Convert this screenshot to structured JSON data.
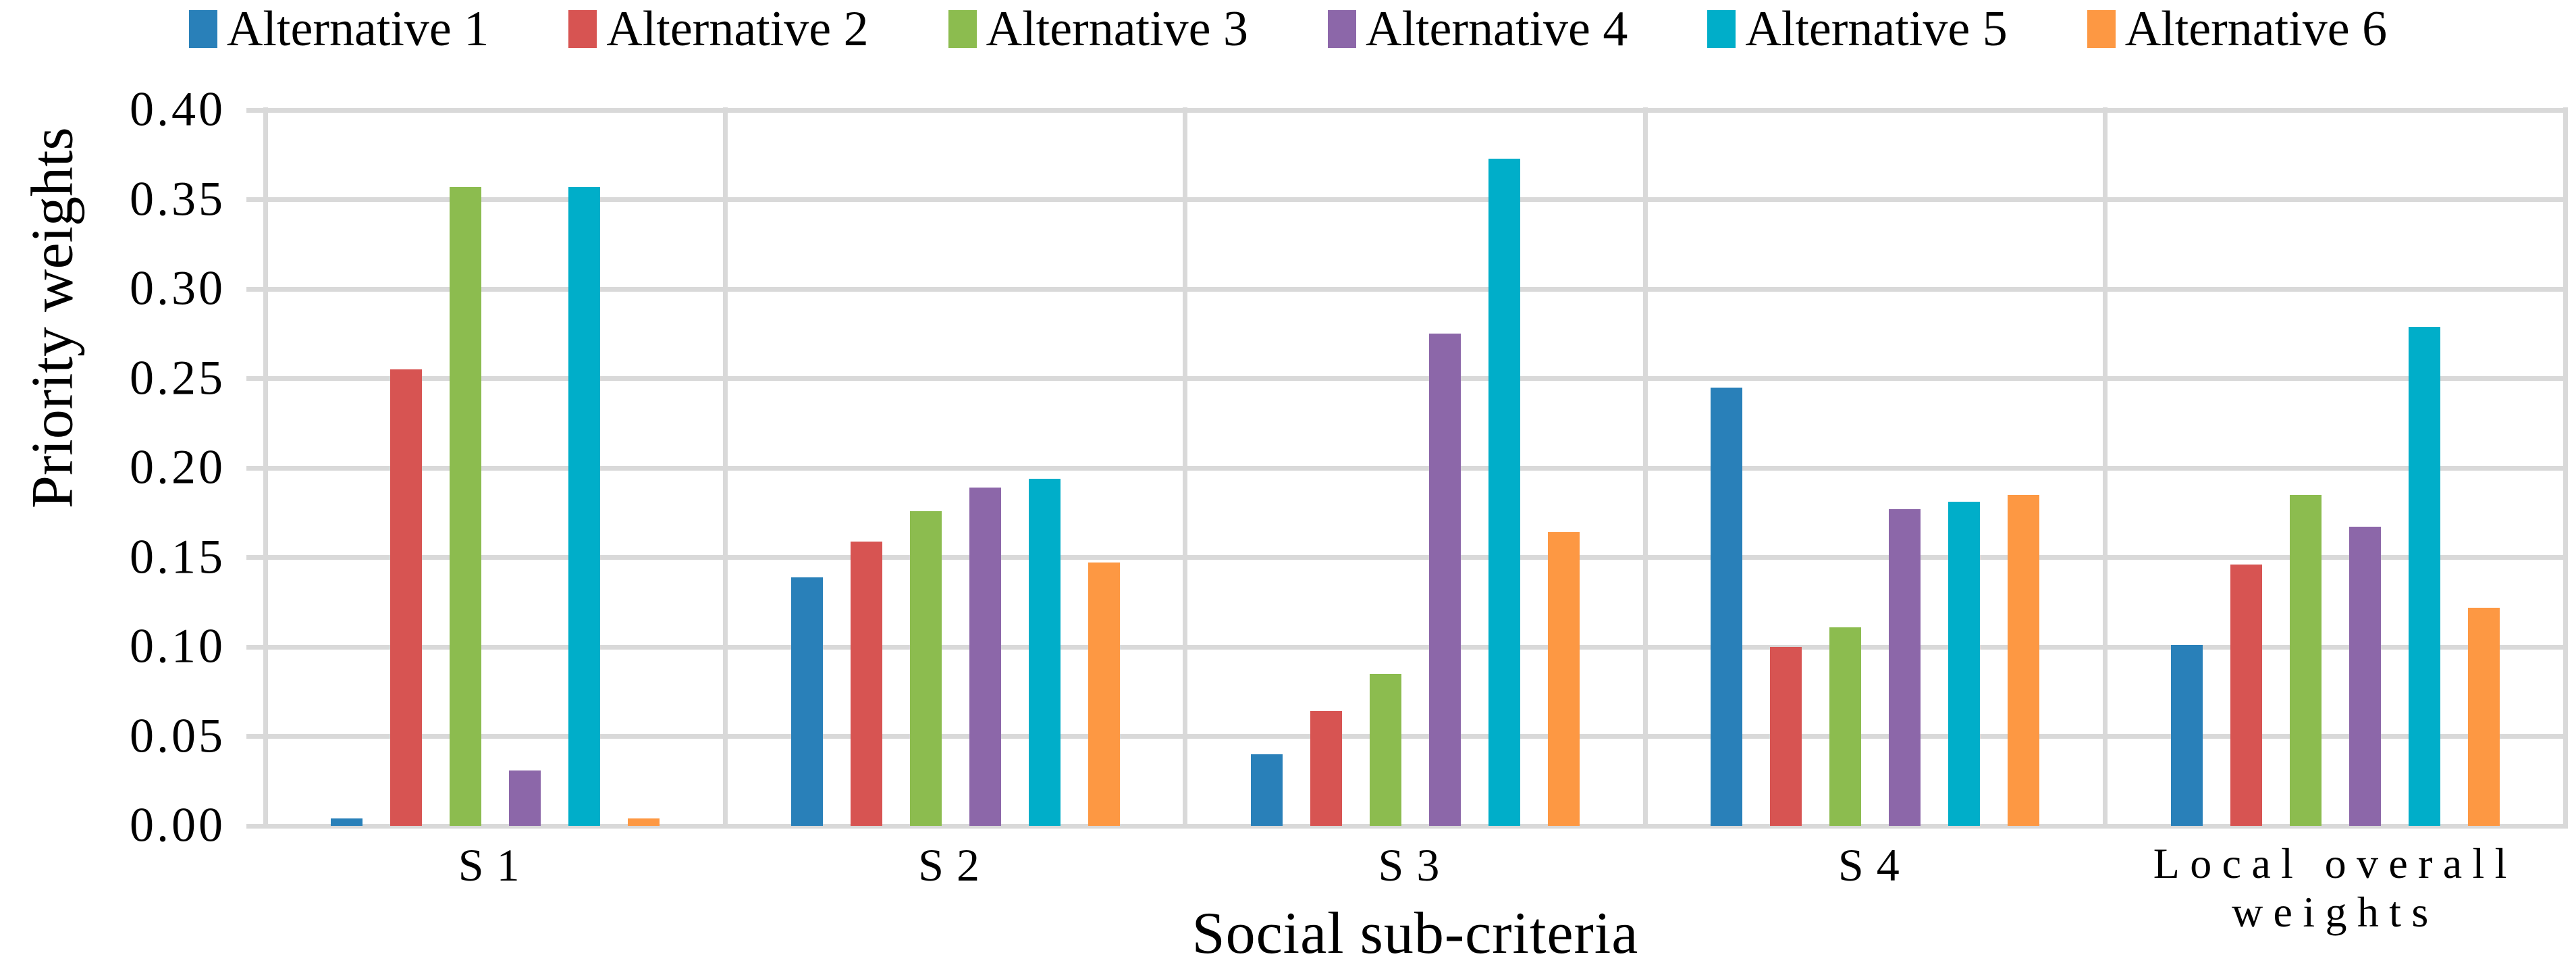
{
  "legend": [
    {
      "label": "Alternative 1",
      "color": "#2980b9"
    },
    {
      "label": "Alternative 2",
      "color": "#d75452"
    },
    {
      "label": "Alternative 3",
      "color": "#8cbc4f"
    },
    {
      "label": "Alternative 4",
      "color": "#8c67a9"
    },
    {
      "label": "Alternative 5",
      "color": "#00aec9"
    },
    {
      "label": "Alternative 6",
      "color": "#fd9843"
    }
  ],
  "y_axis": {
    "title": "Priority weights",
    "tick_labels": [
      "0.40",
      "0.35",
      "0.30",
      "0.25",
      "0.20",
      "0.15",
      "0.10",
      "0.05",
      "0.00"
    ],
    "grid_color": "#d9d9d9"
  },
  "x_axis": {
    "title": "Social sub-criteria",
    "category_label_lines": [
      [
        "S1"
      ],
      [
        "S2"
      ],
      [
        "S3"
      ],
      [
        "S4"
      ],
      [
        "Local overall",
        "weights"
      ]
    ]
  },
  "chart_data": {
    "type": "bar",
    "title": "",
    "categories": [
      "S1",
      "S2",
      "S3",
      "S4",
      "Local overall weights"
    ],
    "series": [
      {
        "name": "Alternative 1",
        "color": "#2980b9",
        "values": [
          0.004,
          0.139,
          0.04,
          0.245,
          0.101
        ]
      },
      {
        "name": "Alternative 2",
        "color": "#d75452",
        "values": [
          0.255,
          0.159,
          0.064,
          0.1,
          0.146
        ]
      },
      {
        "name": "Alternative 3",
        "color": "#8cbc4f",
        "values": [
          0.357,
          0.176,
          0.085,
          0.111,
          0.185
        ]
      },
      {
        "name": "Alternative 4",
        "color": "#8c67a9",
        "values": [
          0.031,
          0.189,
          0.275,
          0.177,
          0.167
        ]
      },
      {
        "name": "Alternative 5",
        "color": "#00aec9",
        "values": [
          0.357,
          0.194,
          0.373,
          0.181,
          0.279
        ]
      },
      {
        "name": "Alternative 6",
        "color": "#fd9843",
        "values": [
          0.004,
          0.147,
          0.164,
          0.185,
          0.122
        ]
      }
    ],
    "xlabel": "Social sub-criteria",
    "ylabel": "Priority weights",
    "ylim": [
      0,
      0.4
    ],
    "ytick_step": 0.05,
    "grid": true,
    "legend_position": "top"
  }
}
